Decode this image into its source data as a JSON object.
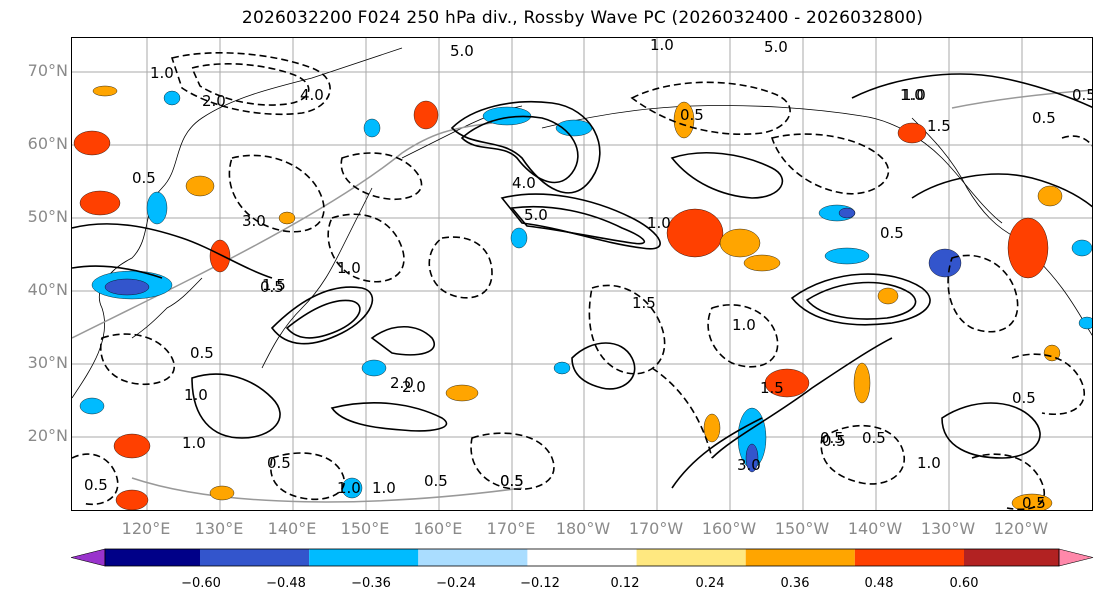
{
  "title": "2026032200 F024 250 hPa div., Rossby Wave PC (2026032400 - 2026032800)",
  "lat_labels": [
    "70°N",
    "60°N",
    "50°N",
    "40°N",
    "30°N",
    "20°N"
  ],
  "lon_labels": [
    "120°E",
    "130°E",
    "140°E",
    "150°E",
    "160°E",
    "170°E",
    "180°W",
    "170°W",
    "160°W",
    "150°W",
    "140°W",
    "130°W",
    "120°W"
  ],
  "colorbar": {
    "colors": [
      "#9933cc",
      "#000088",
      "#3355cc",
      "#00bbff",
      "#aaddff",
      "#ffffff",
      "#ffe880",
      "#ffa500",
      "#ff4000",
      "#b22222",
      "#ff88aa"
    ],
    "ticks": [
      "−0.60",
      "−0.48",
      "−0.36",
      "−0.24",
      "−0.12",
      "0.12",
      "0.24",
      "0.36",
      "0.48",
      "0.60"
    ]
  },
  "contour_labels": [
    "5.0",
    "5.0",
    "1.0",
    "1.0",
    "2.0",
    "1.0",
    "0.5",
    "0.5",
    "1.5",
    "0.5",
    "1.0",
    "1.5",
    "2.0",
    "0.5",
    "1.0",
    "0.5",
    "0.5",
    "1.0",
    "4.0",
    "4.0",
    "5.0",
    "3.0",
    "1.0",
    "0.5",
    "1.0",
    "0.5",
    "1.0",
    "0.5",
    "0.5",
    "3.0",
    "0.5",
    "0.5",
    "0.5",
    "1.0",
    "0.5",
    "1.5",
    "1.0",
    "0.5",
    "0.5",
    "2.0",
    "0.5",
    "1.0",
    "1.5"
  ]
}
